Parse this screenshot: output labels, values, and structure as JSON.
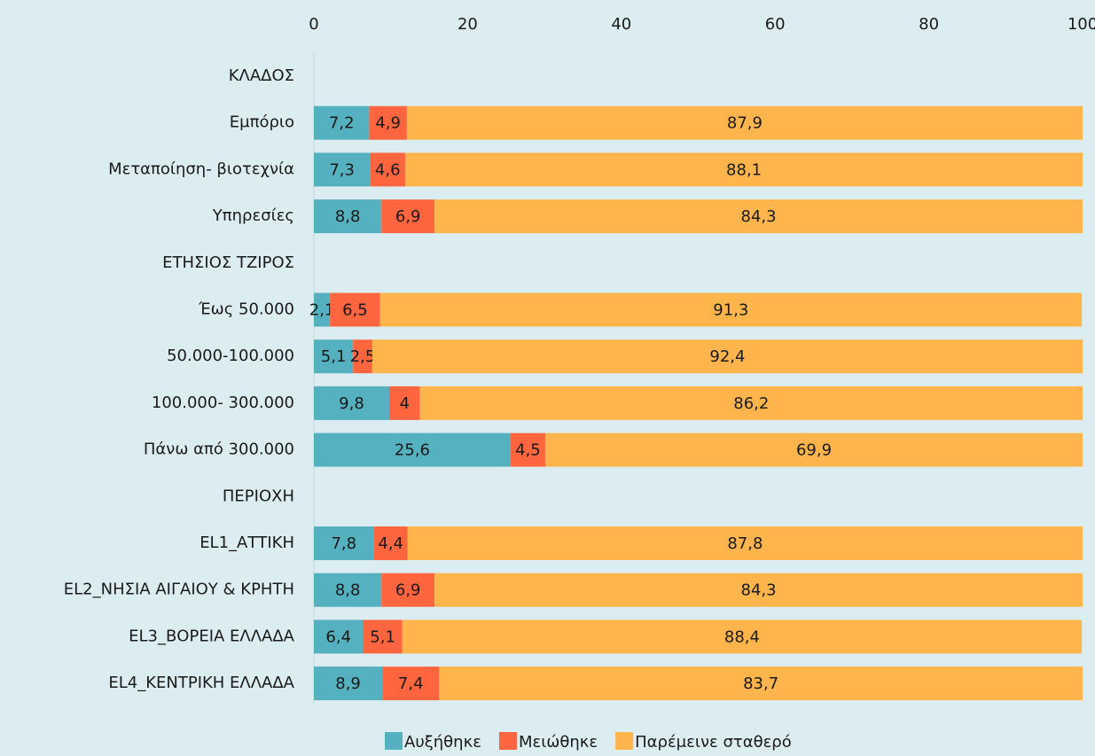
{
  "chart_data": {
    "type": "stacked-bar-horizontal",
    "categories": [
      "ΚΛΑΔΟΣ",
      "Εμπόριο",
      "Μεταποίηση- βιοτεχνία",
      "Υπηρεσίες",
      "ΕΤΗΣΙΟΣ ΤΖΙΡΟΣ",
      "Έως 50.000",
      "50.000-100.000",
      "100.000- 300.000",
      "Πάνω από 300.000",
      "ΠΕΡΙΟΧΗ",
      "EL1_ΑΤΤΙΚΗ",
      "EL2_ΝΗΣΙΑ ΑΙΓΑΙΟΥ & ΚΡΗΤΗ",
      "EL3_ΒΟΡΕΙΑ ΕΛΛΑΔΑ",
      "EL4_ΚΕΝΤΡΙΚΗ ΕΛΛΑΔΑ"
    ],
    "series": [
      {
        "name": "Αυξήθηκε",
        "color": "#55b0bf",
        "values": [
          null,
          7.2,
          7.3,
          8.8,
          null,
          2.1,
          5.1,
          9.8,
          25.6,
          null,
          7.8,
          8.8,
          6.4,
          8.9
        ],
        "value_labels": [
          null,
          "7,2",
          "7,3",
          "8,8",
          null,
          "2,1",
          "5,1",
          "9,8",
          "25,6",
          null,
          "7,8",
          "8,8",
          "6,4",
          "8,9"
        ]
      },
      {
        "name": "Μειώθηκε",
        "color": "#ff6640",
        "values": [
          null,
          4.9,
          4.6,
          6.9,
          null,
          6.5,
          2.5,
          4,
          4.5,
          null,
          4.4,
          6.9,
          5.1,
          7.4
        ],
        "value_labels": [
          null,
          "4,9",
          "4,6",
          "6,9",
          null,
          "6,5",
          "2,5",
          "4",
          "4,5",
          null,
          "4,4",
          "6,9",
          "5,1",
          "7,4"
        ]
      },
      {
        "name": "Παρέμεινε σταθερό",
        "color": "#ffb54c",
        "values": [
          null,
          87.9,
          88.1,
          84.3,
          null,
          91.3,
          92.4,
          86.2,
          69.9,
          null,
          87.8,
          84.3,
          88.4,
          83.7
        ],
        "value_labels": [
          null,
          "87,9",
          "88,1",
          "84,3",
          null,
          "91,3",
          "92,4",
          "86,2",
          "69,9",
          null,
          "87,8",
          "84,3",
          "88,4",
          "83,7"
        ]
      }
    ],
    "xlim": [
      0,
      100
    ],
    "xticks": [
      0,
      20,
      40,
      60,
      80,
      100
    ],
    "legend": "bottom"
  }
}
